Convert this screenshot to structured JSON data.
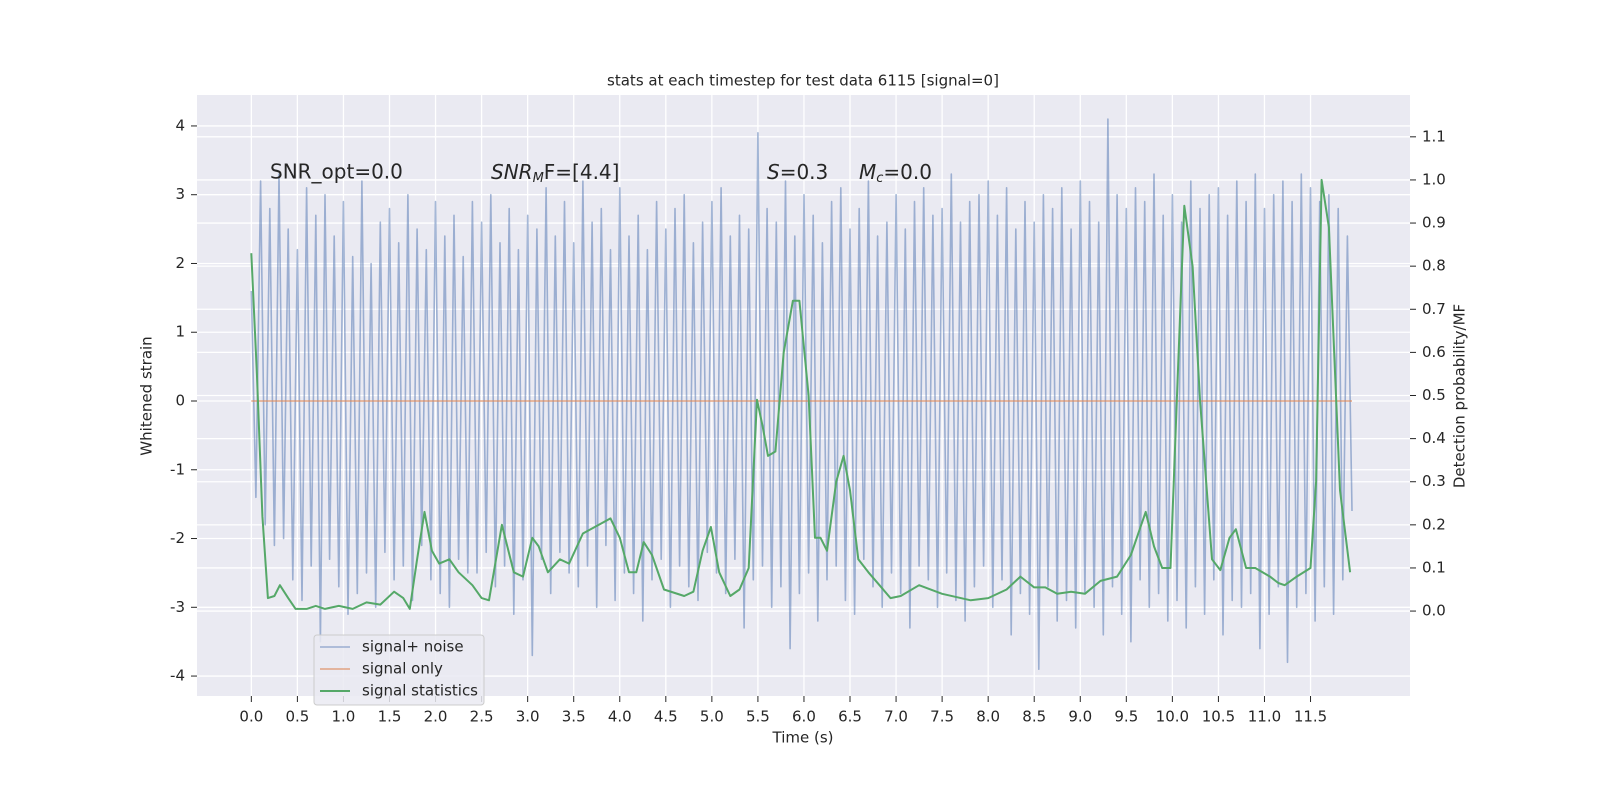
{
  "chart_data": {
    "type": "line",
    "title": "stats at each timestep for test data 6115 [signal=0]",
    "xlabel": "Time (s)",
    "ylabel": "Whitened strain",
    "y2label": "Detection probability/MF",
    "annotations": [
      {
        "text": "SNR_opt=0.0"
      },
      {
        "main": "SNR",
        "sub": "M",
        "rest": "F=[4.4]"
      },
      {
        "main": "S",
        "rest": "=0.3"
      },
      {
        "main": "M",
        "sub": "c",
        "rest": "=0.0"
      }
    ],
    "xlim": [
      -0.59,
      12.58
    ],
    "ylim": [
      -4.29,
      4.45
    ],
    "y2lim": [
      -0.197,
      1.197
    ],
    "xticks": [
      {
        "value": 0,
        "label": "0.0"
      },
      0.5,
      {
        "value": 1,
        "label": "1.0"
      },
      1.5,
      {
        "value": 2,
        "label": "2.0"
      },
      2.5,
      {
        "value": 3,
        "label": "3.0"
      },
      3.5,
      {
        "value": 4,
        "label": "4.0"
      },
      4.5,
      {
        "value": 5,
        "label": "5.0"
      },
      5.5,
      {
        "value": 6,
        "label": "6.0"
      },
      6.5,
      {
        "value": 7,
        "label": "7.0"
      },
      7.5,
      {
        "value": 8,
        "label": "8.0"
      },
      8.5,
      {
        "value": 9,
        "label": "9.0"
      },
      9.5,
      {
        "value": 10,
        "label": "10.0"
      },
      10.5,
      {
        "value": 11,
        "label": "11.0"
      },
      11.5
    ],
    "yticks": [
      -4,
      -3,
      -2,
      -1,
      0,
      1,
      2,
      3,
      4
    ],
    "y2ticks": [
      {
        "value": 0,
        "label": "0.0"
      },
      0.1,
      0.2,
      0.3,
      0.4,
      0.5,
      0.6,
      0.7,
      0.8,
      0.9,
      {
        "value": 1,
        "label": "1.0"
      },
      1.1
    ],
    "grid": true,
    "legend": "lower left",
    "series": [
      {
        "name": "signal+ noise",
        "color": "#4c72b0",
        "x": [
          0,
          0.05,
          0.1,
          0.15,
          0.2,
          0.25,
          0.3,
          0.35,
          0.4,
          0.45,
          0.5,
          0.55,
          0.6,
          0.65,
          0.7,
          0.75,
          0.8,
          0.85,
          0.9,
          0.95,
          1,
          1.05,
          1.1,
          1.15,
          1.2,
          1.25,
          1.3,
          1.35,
          1.4,
          1.45,
          1.5,
          1.55,
          1.6,
          1.65,
          1.7,
          1.75,
          1.8,
          1.85,
          1.9,
          1.95,
          2,
          2.05,
          2.1,
          2.15,
          2.2,
          2.25,
          2.3,
          2.35,
          2.4,
          2.45,
          2.5,
          2.55,
          2.6,
          2.65,
          2.7,
          2.75,
          2.8,
          2.85,
          2.9,
          2.95,
          3,
          3.05,
          3.1,
          3.15,
          3.2,
          3.25,
          3.3,
          3.35,
          3.4,
          3.45,
          3.5,
          3.55,
          3.6,
          3.65,
          3.7,
          3.75,
          3.8,
          3.85,
          3.9,
          3.95,
          4,
          4.05,
          4.1,
          4.15,
          4.2,
          4.25,
          4.3,
          4.35,
          4.4,
          4.45,
          4.5,
          4.55,
          4.6,
          4.65,
          4.7,
          4.75,
          4.8,
          4.85,
          4.9,
          4.95,
          5,
          5.05,
          5.1,
          5.15,
          5.2,
          5.25,
          5.3,
          5.35,
          5.4,
          5.45,
          5.5,
          5.55,
          5.6,
          5.65,
          5.7,
          5.75,
          5.8,
          5.85,
          5.9,
          5.95,
          6,
          6.05,
          6.1,
          6.15,
          6.2,
          6.25,
          6.3,
          6.35,
          6.4,
          6.45,
          6.5,
          6.55,
          6.6,
          6.65,
          6.7,
          6.75,
          6.8,
          6.85,
          6.9,
          6.95,
          7,
          7.05,
          7.1,
          7.15,
          7.2,
          7.25,
          7.3,
          7.35,
          7.4,
          7.45,
          7.5,
          7.55,
          7.6,
          7.65,
          7.7,
          7.75,
          7.8,
          7.85,
          7.9,
          7.95,
          8,
          8.05,
          8.1,
          8.15,
          8.2,
          8.25,
          8.3,
          8.35,
          8.4,
          8.45,
          8.5,
          8.55,
          8.6,
          8.65,
          8.7,
          8.75,
          8.8,
          8.85,
          8.9,
          8.95,
          9,
          9.05,
          9.1,
          9.15,
          9.2,
          9.25,
          9.3,
          9.35,
          9.4,
          9.45,
          9.5,
          9.55,
          9.6,
          9.65,
          9.7,
          9.75,
          9.8,
          9.85,
          9.9,
          9.95,
          10,
          10.05,
          10.1,
          10.15,
          10.2,
          10.25,
          10.3,
          10.35,
          10.4,
          10.45,
          10.5,
          10.55,
          10.6,
          10.65,
          10.7,
          10.75,
          10.8,
          10.85,
          10.9,
          10.95,
          11,
          11.05,
          11.1,
          11.15,
          11.2,
          11.25,
          11.3,
          11.35,
          11.4,
          11.45,
          11.5,
          11.55,
          11.6,
          11.65,
          11.7,
          11.75,
          11.8,
          11.85,
          11.9,
          11.95
        ],
        "values": [
          1.6,
          -1.4,
          3.2,
          -1.8,
          2.8,
          -2.1,
          3.3,
          -2.0,
          2.5,
          -2.6,
          2.2,
          -2.9,
          3.1,
          -2.4,
          2.7,
          -3.5,
          3.0,
          -2.3,
          2.4,
          -2.7,
          2.9,
          -3.1,
          2.1,
          -2.8,
          3.2,
          -2.5,
          2.0,
          -3.0,
          2.6,
          -2.2,
          2.8,
          -2.6,
          2.3,
          -2.4,
          3.0,
          -2.9,
          2.5,
          -2.1,
          2.2,
          -2.6,
          2.9,
          -2.8,
          2.4,
          -3.0,
          2.7,
          -2.3,
          2.1,
          -2.5,
          2.9,
          -2.5,
          2.6,
          -2.2,
          3.0,
          -2.7,
          2.3,
          -2.4,
          2.8,
          -3.1,
          2.2,
          -2.6,
          2.7,
          -3.7,
          2.5,
          -2.3,
          3.1,
          -2.8,
          2.4,
          -2.2,
          2.9,
          -2.5,
          2.3,
          -2.7,
          3.2,
          -2.4,
          2.6,
          -3.0,
          2.8,
          -2.1,
          2.2,
          -2.9,
          3.1,
          -2.5,
          2.4,
          -2.8,
          2.7,
          -3.2,
          2.2,
          -2.6,
          2.9,
          -2.3,
          2.5,
          -3.0,
          2.8,
          -2.4,
          3.0,
          -2.7,
          2.3,
          -2.9,
          2.6,
          -2.2,
          2.9,
          -2.5,
          3.1,
          -2.8,
          2.4,
          -2.3,
          2.7,
          -3.3,
          2.5,
          -2.6,
          3.9,
          -2.4,
          2.8,
          -3.0,
          2.6,
          -2.7,
          3.2,
          -3.6,
          2.4,
          -2.8,
          3.0,
          -2.5,
          2.7,
          -3.2,
          2.3,
          -2.6,
          2.9,
          -2.4,
          3.1,
          -2.9,
          2.5,
          -3.1,
          2.8,
          -2.3,
          3.2,
          -2.7,
          2.4,
          -3.0,
          2.6,
          -2.5,
          3.0,
          -2.8,
          2.5,
          -3.3,
          2.9,
          -2.4,
          3.1,
          -2.6,
          2.7,
          -3.0,
          2.8,
          -2.5,
          3.3,
          -2.9,
          2.6,
          -3.2,
          2.9,
          -2.7,
          3.0,
          -2.4,
          3.2,
          -3.0,
          2.7,
          -2.6,
          3.1,
          -3.4,
          2.5,
          -2.8,
          2.9,
          -3.1,
          2.6,
          -3.9,
          3.0,
          -2.7,
          2.8,
          -3.2,
          3.1,
          -2.9,
          2.5,
          -3.3,
          3.2,
          -2.8,
          2.9,
          -3.0,
          2.6,
          -3.4,
          4.1,
          -2.7,
          3.0,
          -3.1,
          2.8,
          -3.5,
          3.1,
          -2.6,
          2.9,
          -3.0,
          3.3,
          -2.8,
          2.7,
          -3.2,
          3.0,
          -2.9,
          2.6,
          -3.3,
          3.2,
          -2.7,
          2.8,
          -3.1,
          3.0,
          -2.6,
          3.1,
          -3.4,
          2.7,
          -2.9,
          3.2,
          -3.0,
          2.9,
          -2.8,
          3.3,
          -3.6,
          2.8,
          -3.1,
          3.0,
          -2.7,
          3.2,
          -3.8,
          2.9,
          -3.0,
          3.3,
          -2.8,
          3.1,
          -3.2,
          2.9,
          -2.7,
          3.0,
          -3.1,
          2.8,
          -2.6,
          2.4,
          -1.6
        ]
      },
      {
        "name": "signal only",
        "color": "#dd8452",
        "x": [
          0,
          11.95
        ],
        "values": [
          0,
          0
        ]
      },
      {
        "name": "signal statistics",
        "color": "#55a868",
        "axis": "y2",
        "x": [
          0,
          0.06,
          0.12,
          0.18,
          0.25,
          0.31,
          0.4,
          0.48,
          0.6,
          0.7,
          0.8,
          0.95,
          1.1,
          1.25,
          1.4,
          1.55,
          1.65,
          1.72,
          1.8,
          1.88,
          1.96,
          2.04,
          2.15,
          2.25,
          2.4,
          2.5,
          2.58,
          2.72,
          2.85,
          2.95,
          3.05,
          3.12,
          3.22,
          3.35,
          3.45,
          3.6,
          3.9,
          4.0,
          4.1,
          4.18,
          4.26,
          4.35,
          4.48,
          4.7,
          4.8,
          4.9,
          4.99,
          5.08,
          5.2,
          5.3,
          5.4,
          5.49,
          5.55,
          5.61,
          5.69,
          5.78,
          5.88,
          5.95,
          6.05,
          6.12,
          6.18,
          6.25,
          6.35,
          6.43,
          6.5,
          6.59,
          6.7,
          6.82,
          6.94,
          7.05,
          7.25,
          7.5,
          7.81,
          8.0,
          8.2,
          8.35,
          8.5,
          8.62,
          8.75,
          8.9,
          9.05,
          9.22,
          9.4,
          9.55,
          9.71,
          9.8,
          9.89,
          9.98,
          10.05,
          10.13,
          10.22,
          10.3,
          10.43,
          10.52,
          10.62,
          10.69,
          10.8,
          10.9,
          11.06,
          11.15,
          11.22,
          11.35,
          11.5,
          11.56,
          11.62,
          11.7,
          11.82,
          11.93
        ],
        "values": [
          0.83,
          0.55,
          0.22,
          0.03,
          0.035,
          0.06,
          0.03,
          0.005,
          0.005,
          0.012,
          0.005,
          0.012,
          0.005,
          0.02,
          0.015,
          0.045,
          0.03,
          0.005,
          0.12,
          0.23,
          0.14,
          0.11,
          0.12,
          0.09,
          0.06,
          0.03,
          0.025,
          0.2,
          0.09,
          0.08,
          0.17,
          0.15,
          0.09,
          0.12,
          0.11,
          0.18,
          0.215,
          0.17,
          0.09,
          0.09,
          0.16,
          0.13,
          0.05,
          0.035,
          0.045,
          0.14,
          0.195,
          0.09,
          0.035,
          0.05,
          0.1,
          0.49,
          0.43,
          0.36,
          0.37,
          0.6,
          0.72,
          0.72,
          0.5,
          0.17,
          0.17,
          0.14,
          0.3,
          0.36,
          0.28,
          0.12,
          0.09,
          0.06,
          0.03,
          0.035,
          0.06,
          0.04,
          0.025,
          0.03,
          0.05,
          0.08,
          0.055,
          0.055,
          0.04,
          0.045,
          0.04,
          0.07,
          0.08,
          0.13,
          0.23,
          0.15,
          0.1,
          0.1,
          0.5,
          0.94,
          0.8,
          0.49,
          0.12,
          0.095,
          0.17,
          0.19,
          0.1,
          0.1,
          0.08,
          0.065,
          0.06,
          0.08,
          0.1,
          0.3,
          1.0,
          0.89,
          0.28,
          0.09
        ]
      }
    ]
  }
}
